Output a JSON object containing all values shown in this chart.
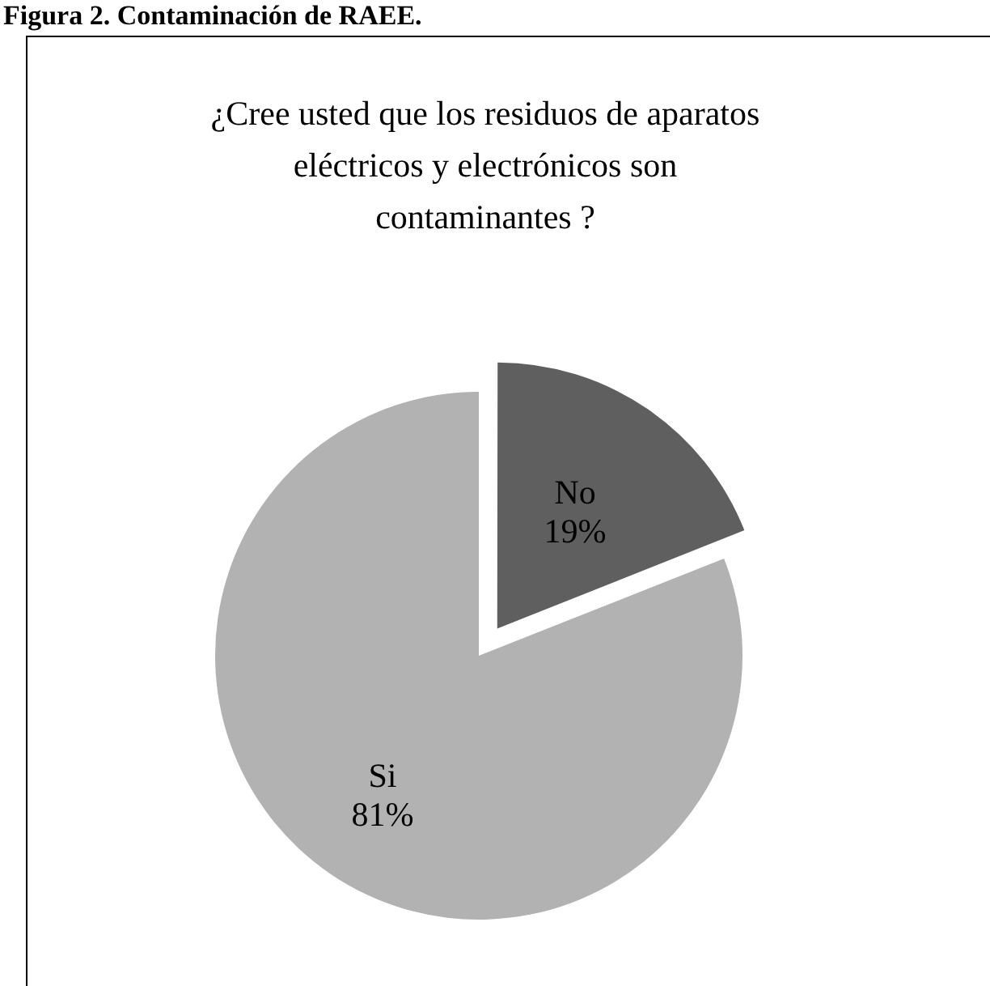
{
  "chart_data": {
    "type": "pie",
    "title": "¿Cree usted que los  residuos de aparatos  eléctricos y electrónicos son contaminantes ?",
    "annotations": [
      "Figura 2. Contaminación de RAEE."
    ],
    "categories": [
      "No",
      "Si"
    ],
    "values": [
      19,
      81
    ],
    "colors": [
      "#5f5f5f",
      "#b2b2b2"
    ],
    "value_labels": [
      "19%",
      "81%"
    ],
    "legend": false
  }
}
